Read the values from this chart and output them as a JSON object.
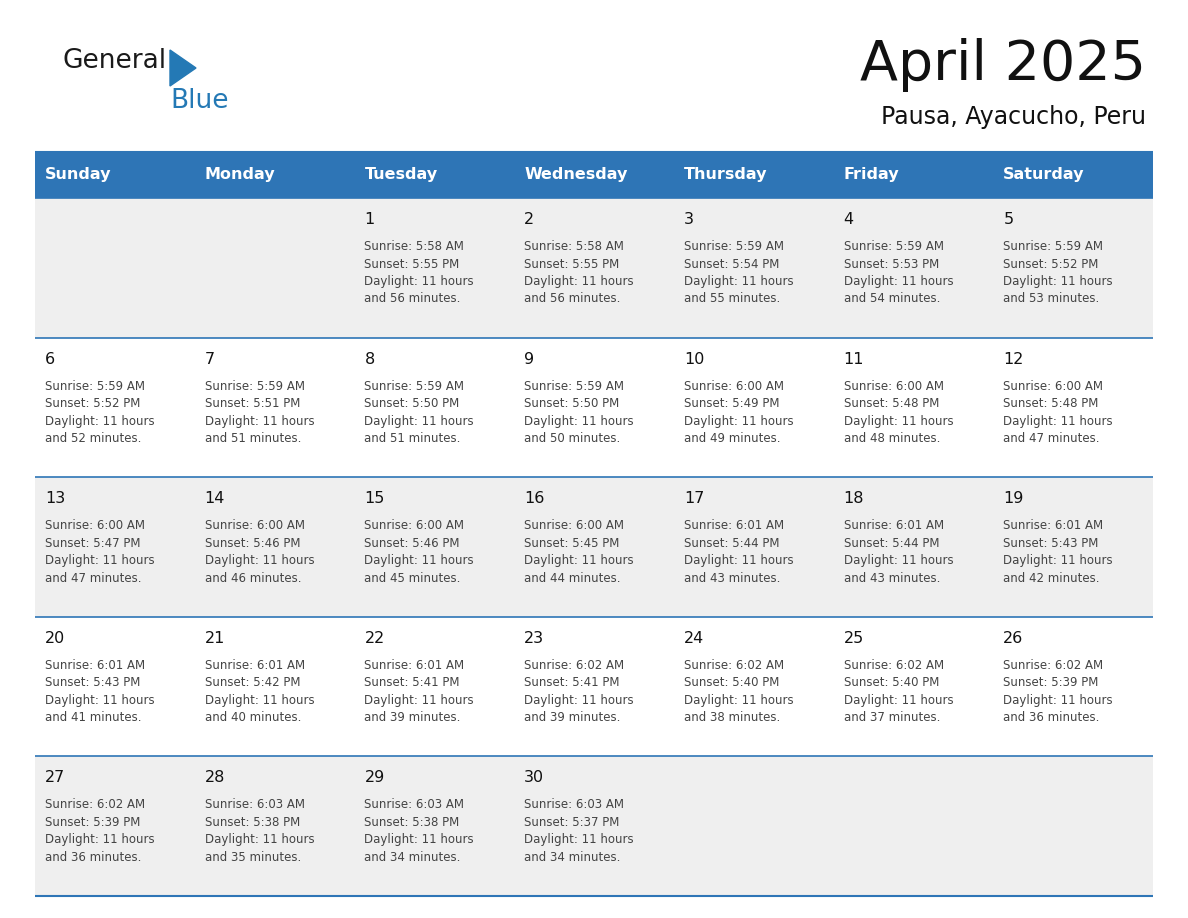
{
  "title": "April 2025",
  "subtitle": "Pausa, Ayacucho, Peru",
  "header_bg": "#2E75B6",
  "header_text_color": "#FFFFFF",
  "days_of_week": [
    "Sunday",
    "Monday",
    "Tuesday",
    "Wednesday",
    "Thursday",
    "Friday",
    "Saturday"
  ],
  "row_bg_odd": "#EFEFEF",
  "row_bg_even": "#FFFFFF",
  "cell_border_color": "#2E75B6",
  "text_color": "#444444",
  "day_num_color": "#111111",
  "logo_general_color": "#1A1A1A",
  "logo_blue_color": "#2479B5",
  "weeks": [
    {
      "days": [
        {
          "date": "",
          "sunrise": "",
          "sunset": "",
          "daylight": ""
        },
        {
          "date": "",
          "sunrise": "",
          "sunset": "",
          "daylight": ""
        },
        {
          "date": "1",
          "sunrise": "5:58 AM",
          "sunset": "5:55 PM",
          "daylight_h": "11 hours",
          "daylight_m": "and 56 minutes."
        },
        {
          "date": "2",
          "sunrise": "5:58 AM",
          "sunset": "5:55 PM",
          "daylight_h": "11 hours",
          "daylight_m": "and 56 minutes."
        },
        {
          "date": "3",
          "sunrise": "5:59 AM",
          "sunset": "5:54 PM",
          "daylight_h": "11 hours",
          "daylight_m": "and 55 minutes."
        },
        {
          "date": "4",
          "sunrise": "5:59 AM",
          "sunset": "5:53 PM",
          "daylight_h": "11 hours",
          "daylight_m": "and 54 minutes."
        },
        {
          "date": "5",
          "sunrise": "5:59 AM",
          "sunset": "5:52 PM",
          "daylight_h": "11 hours",
          "daylight_m": "and 53 minutes."
        }
      ]
    },
    {
      "days": [
        {
          "date": "6",
          "sunrise": "5:59 AM",
          "sunset": "5:52 PM",
          "daylight_h": "11 hours",
          "daylight_m": "and 52 minutes."
        },
        {
          "date": "7",
          "sunrise": "5:59 AM",
          "sunset": "5:51 PM",
          "daylight_h": "11 hours",
          "daylight_m": "and 51 minutes."
        },
        {
          "date": "8",
          "sunrise": "5:59 AM",
          "sunset": "5:50 PM",
          "daylight_h": "11 hours",
          "daylight_m": "and 51 minutes."
        },
        {
          "date": "9",
          "sunrise": "5:59 AM",
          "sunset": "5:50 PM",
          "daylight_h": "11 hours",
          "daylight_m": "and 50 minutes."
        },
        {
          "date": "10",
          "sunrise": "6:00 AM",
          "sunset": "5:49 PM",
          "daylight_h": "11 hours",
          "daylight_m": "and 49 minutes."
        },
        {
          "date": "11",
          "sunrise": "6:00 AM",
          "sunset": "5:48 PM",
          "daylight_h": "11 hours",
          "daylight_m": "and 48 minutes."
        },
        {
          "date": "12",
          "sunrise": "6:00 AM",
          "sunset": "5:48 PM",
          "daylight_h": "11 hours",
          "daylight_m": "and 47 minutes."
        }
      ]
    },
    {
      "days": [
        {
          "date": "13",
          "sunrise": "6:00 AM",
          "sunset": "5:47 PM",
          "daylight_h": "11 hours",
          "daylight_m": "and 47 minutes."
        },
        {
          "date": "14",
          "sunrise": "6:00 AM",
          "sunset": "5:46 PM",
          "daylight_h": "11 hours",
          "daylight_m": "and 46 minutes."
        },
        {
          "date": "15",
          "sunrise": "6:00 AM",
          "sunset": "5:46 PM",
          "daylight_h": "11 hours",
          "daylight_m": "and 45 minutes."
        },
        {
          "date": "16",
          "sunrise": "6:00 AM",
          "sunset": "5:45 PM",
          "daylight_h": "11 hours",
          "daylight_m": "and 44 minutes."
        },
        {
          "date": "17",
          "sunrise": "6:01 AM",
          "sunset": "5:44 PM",
          "daylight_h": "11 hours",
          "daylight_m": "and 43 minutes."
        },
        {
          "date": "18",
          "sunrise": "6:01 AM",
          "sunset": "5:44 PM",
          "daylight_h": "11 hours",
          "daylight_m": "and 43 minutes."
        },
        {
          "date": "19",
          "sunrise": "6:01 AM",
          "sunset": "5:43 PM",
          "daylight_h": "11 hours",
          "daylight_m": "and 42 minutes."
        }
      ]
    },
    {
      "days": [
        {
          "date": "20",
          "sunrise": "6:01 AM",
          "sunset": "5:43 PM",
          "daylight_h": "11 hours",
          "daylight_m": "and 41 minutes."
        },
        {
          "date": "21",
          "sunrise": "6:01 AM",
          "sunset": "5:42 PM",
          "daylight_h": "11 hours",
          "daylight_m": "and 40 minutes."
        },
        {
          "date": "22",
          "sunrise": "6:01 AM",
          "sunset": "5:41 PM",
          "daylight_h": "11 hours",
          "daylight_m": "and 39 minutes."
        },
        {
          "date": "23",
          "sunrise": "6:02 AM",
          "sunset": "5:41 PM",
          "daylight_h": "11 hours",
          "daylight_m": "and 39 minutes."
        },
        {
          "date": "24",
          "sunrise": "6:02 AM",
          "sunset": "5:40 PM",
          "daylight_h": "11 hours",
          "daylight_m": "and 38 minutes."
        },
        {
          "date": "25",
          "sunrise": "6:02 AM",
          "sunset": "5:40 PM",
          "daylight_h": "11 hours",
          "daylight_m": "and 37 minutes."
        },
        {
          "date": "26",
          "sunrise": "6:02 AM",
          "sunset": "5:39 PM",
          "daylight_h": "11 hours",
          "daylight_m": "and 36 minutes."
        }
      ]
    },
    {
      "days": [
        {
          "date": "27",
          "sunrise": "6:02 AM",
          "sunset": "5:39 PM",
          "daylight_h": "11 hours",
          "daylight_m": "and 36 minutes."
        },
        {
          "date": "28",
          "sunrise": "6:03 AM",
          "sunset": "5:38 PM",
          "daylight_h": "11 hours",
          "daylight_m": "and 35 minutes."
        },
        {
          "date": "29",
          "sunrise": "6:03 AM",
          "sunset": "5:38 PM",
          "daylight_h": "11 hours",
          "daylight_m": "and 34 minutes."
        },
        {
          "date": "30",
          "sunrise": "6:03 AM",
          "sunset": "5:37 PM",
          "daylight_h": "11 hours",
          "daylight_m": "and 34 minutes."
        },
        {
          "date": "",
          "sunrise": "",
          "sunset": "",
          "daylight_h": "",
          "daylight_m": ""
        },
        {
          "date": "",
          "sunrise": "",
          "sunset": "",
          "daylight_h": "",
          "daylight_m": ""
        },
        {
          "date": "",
          "sunrise": "",
          "sunset": "",
          "daylight_h": "",
          "daylight_m": ""
        }
      ]
    }
  ]
}
